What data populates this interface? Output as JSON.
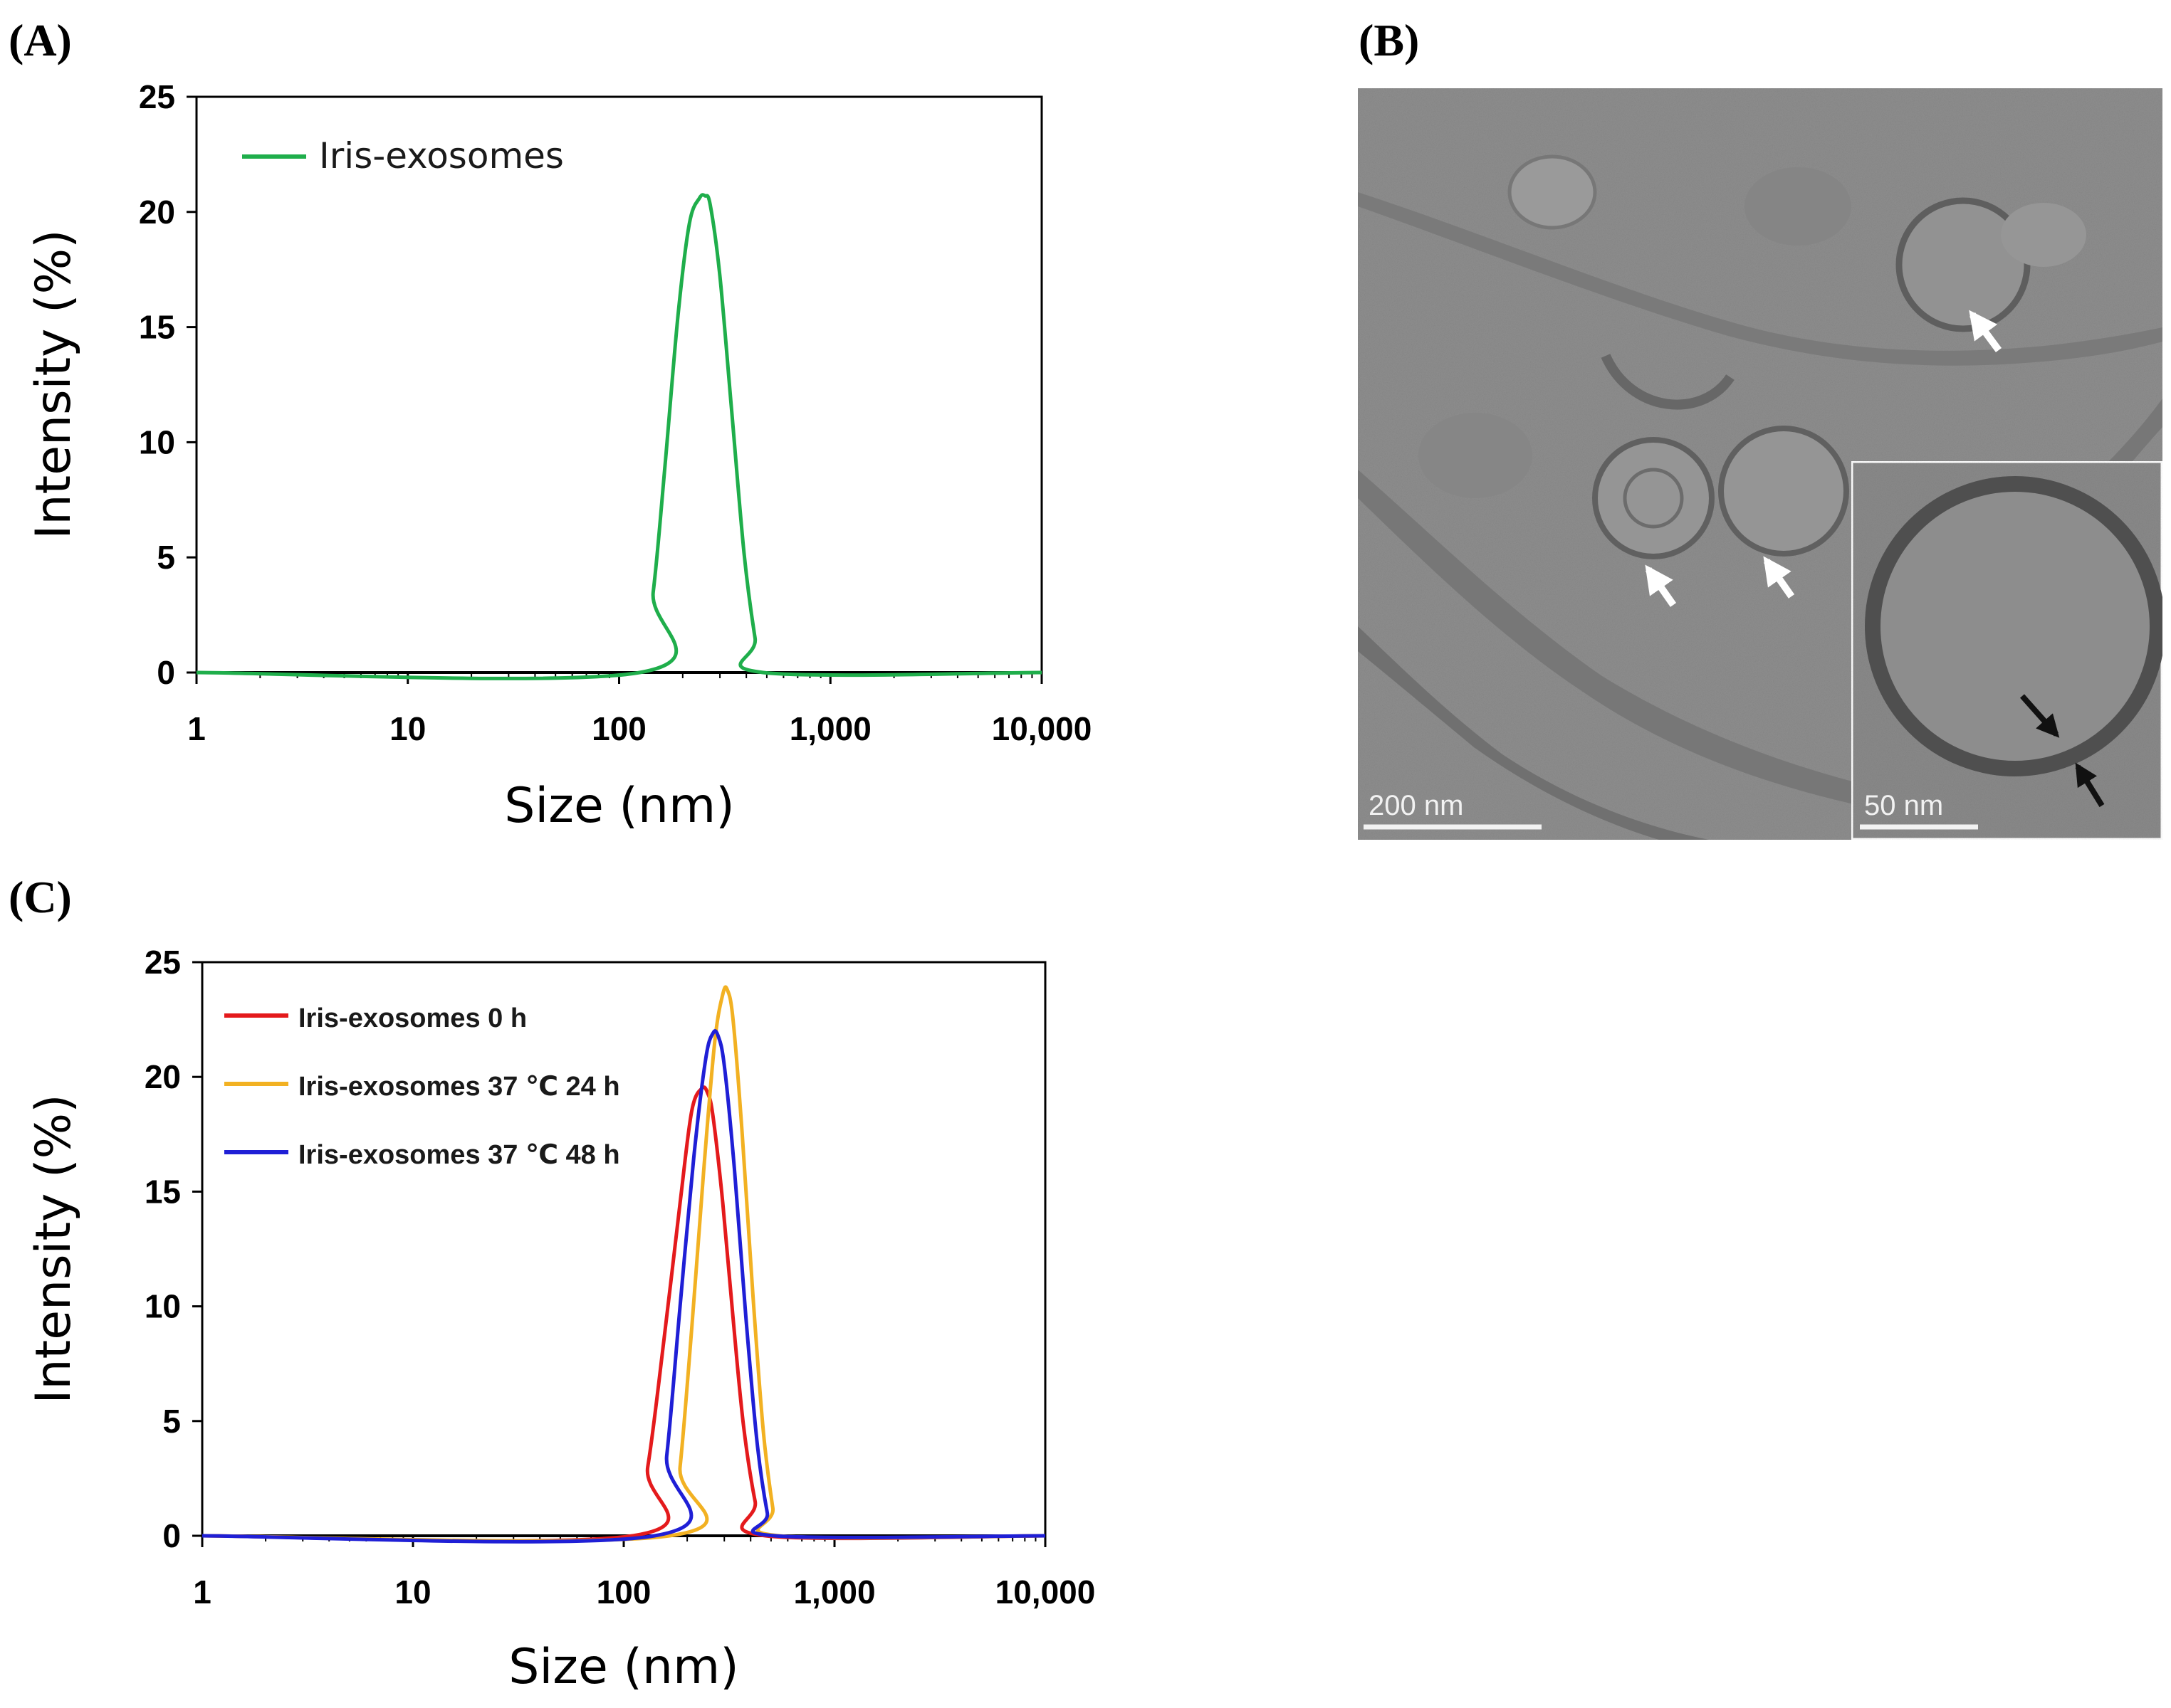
{
  "panels": {
    "a": {
      "letter": "(A)"
    },
    "b": {
      "letter": "(B)",
      "scale_main": "200 nm",
      "scale_inset": "50 nm"
    },
    "c": {
      "letter": "(C)"
    }
  },
  "colors": {
    "green": "#1fae4b",
    "red": "#e41a1c",
    "yellow": "#f2b122",
    "blue": "#1f1fd6",
    "tem_background": "#8e8e8e"
  },
  "chart_data": [
    {
      "id": "A",
      "type": "line",
      "xlabel": "Size (nm)",
      "ylabel": "Intensity (%)",
      "xscale": "log",
      "xlim": [
        1,
        10000
      ],
      "ylim": [
        0,
        25
      ],
      "xticks": [
        1,
        10,
        100,
        1000,
        10000
      ],
      "xtick_labels": [
        "1",
        "10",
        "100",
        "1,000",
        "10,000"
      ],
      "yticks": [
        0,
        5,
        10,
        15,
        20,
        25
      ],
      "ytick_labels": [
        "0",
        "5",
        "10",
        "15",
        "20",
        "25"
      ],
      "legend_position": "top-left",
      "grid": false,
      "series": [
        {
          "name": "Iris-exosomes",
          "color": "#1fae4b",
          "x": [
            1,
            125,
            145,
            165,
            190,
            215,
            240,
            255,
            270,
            300,
            340,
            390,
            440,
            480,
            10000
          ],
          "y": [
            0,
            0,
            3.5,
            9,
            15.5,
            19.5,
            20.6,
            20.7,
            20.3,
            17.2,
            11.5,
            5.2,
            1.5,
            0,
            0
          ]
        }
      ]
    },
    {
      "id": "B",
      "type": "image",
      "description": "cryo-TEM micrograph",
      "scale_bars": [
        "200 nm",
        "50 nm"
      ]
    },
    {
      "id": "C",
      "type": "line",
      "xlabel": "Size (nm)",
      "ylabel": "Intensity (%)",
      "xscale": "log",
      "xlim": [
        1,
        10000
      ],
      "ylim": [
        0,
        25
      ],
      "xticks": [
        1,
        10,
        100,
        1000,
        10000
      ],
      "xtick_labels": [
        "1",
        "10",
        "100",
        "1,000",
        "10,000"
      ],
      "yticks": [
        0,
        5,
        10,
        15,
        20,
        25
      ],
      "ytick_labels": [
        "0",
        "5",
        "10",
        "15",
        "20",
        "25"
      ],
      "legend_position": "top-left",
      "grid": false,
      "series": [
        {
          "name": "Iris-exosomes 0 h",
          "color": "#e41a1c",
          "x": [
            1,
            110,
            130,
            155,
            185,
            210,
            235,
            250,
            265,
            295,
            330,
            370,
            420,
            470,
            10000
          ],
          "y": [
            0,
            0,
            3,
            8.5,
            14.5,
            18.5,
            19.5,
            19.3,
            18.3,
            14.5,
            9.5,
            4.8,
            1.5,
            0,
            0
          ]
        },
        {
          "name": "Iris-exosomes 37 ℃ 24 h",
          "color": "#f2b122",
          "x": [
            1,
            165,
            185,
            210,
            240,
            270,
            295,
            310,
            330,
            365,
            410,
            460,
            510,
            545,
            10000
          ],
          "y": [
            0,
            0,
            3,
            9,
            16,
            21.5,
            23.6,
            23.8,
            22.5,
            17.5,
            10.5,
            4.5,
            1.2,
            0,
            0
          ]
        },
        {
          "name": "Iris-exosomes 37 ℃ 48 h",
          "color": "#1f1fd6",
          "x": [
            1,
            140,
            160,
            185,
            215,
            245,
            265,
            280,
            300,
            335,
            380,
            430,
            480,
            520,
            10000
          ],
          "y": [
            0,
            0,
            3.5,
            10,
            16.5,
            20.8,
            21.9,
            21.8,
            20.5,
            16,
            9.5,
            4,
            1,
            0,
            0
          ]
        }
      ]
    }
  ]
}
